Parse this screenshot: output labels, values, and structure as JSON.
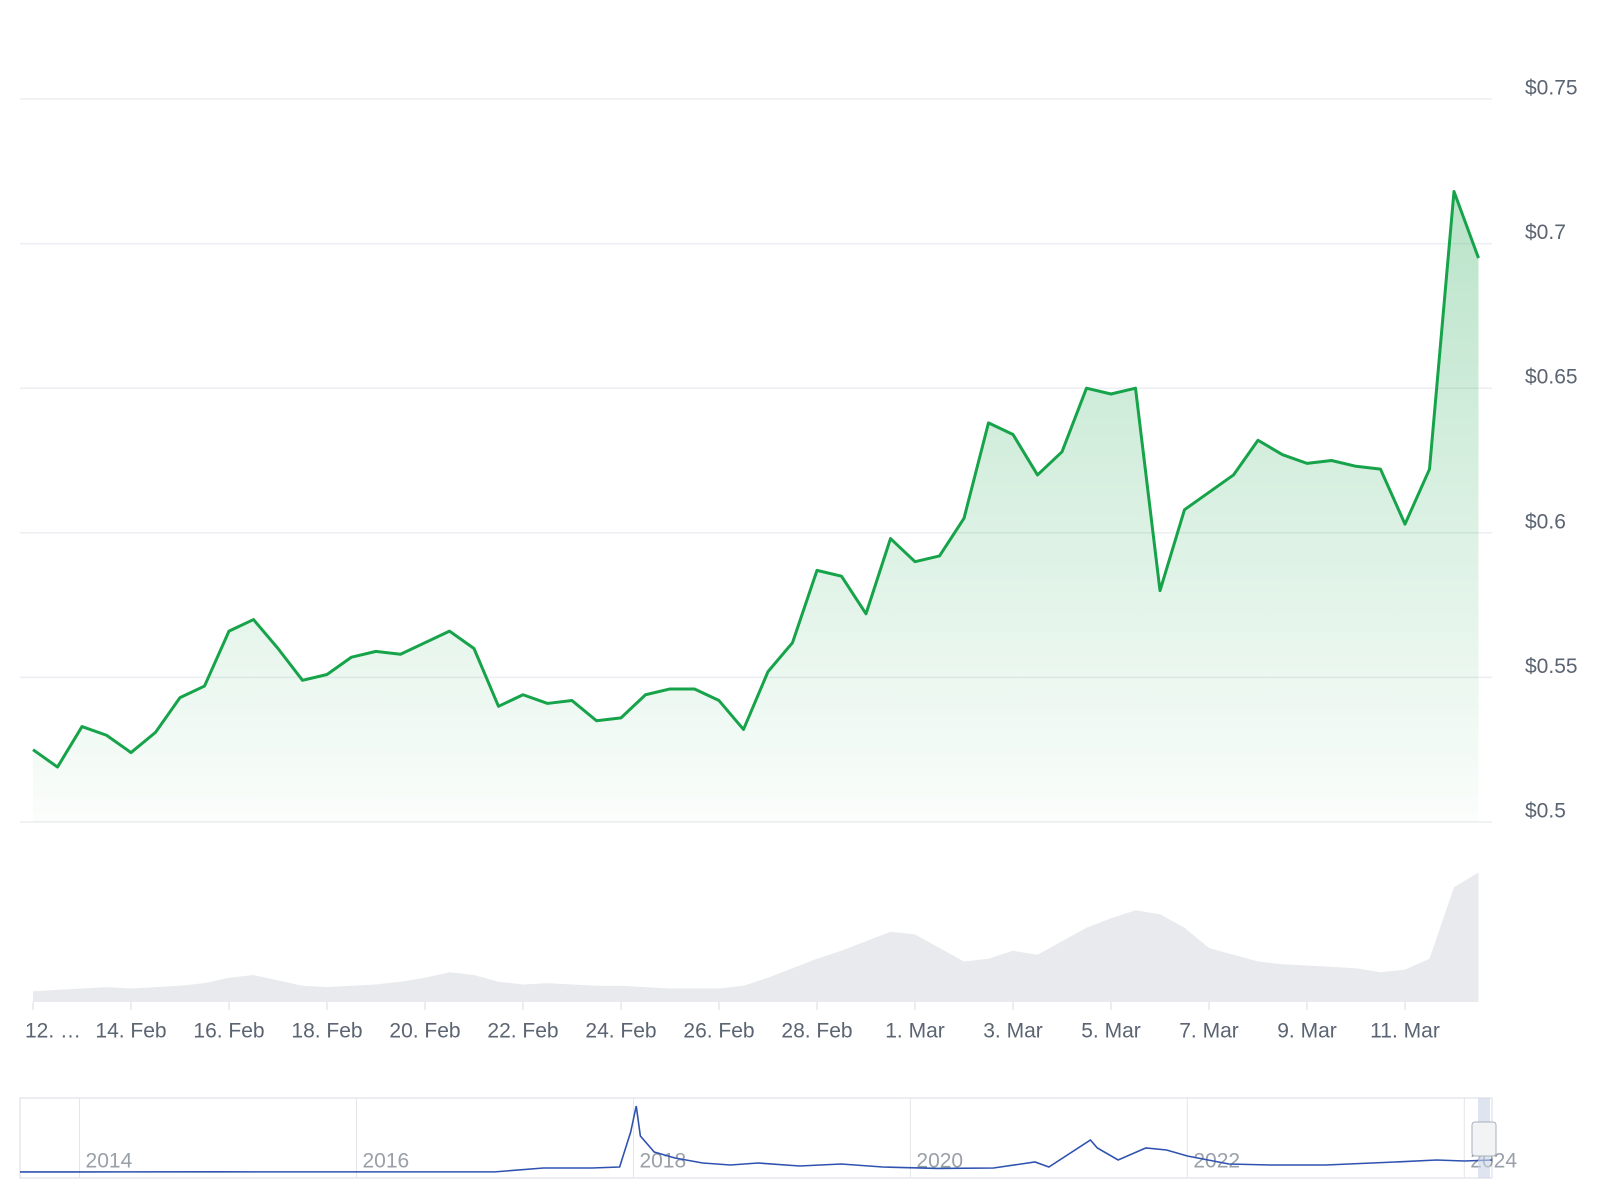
{
  "chart_data": {
    "type": "area",
    "color": "#16a34a",
    "categories": [
      "12. …",
      null,
      null,
      null,
      "14. Feb",
      null,
      null,
      null,
      "16. Feb",
      null,
      null,
      null,
      "18. Feb",
      null,
      null,
      null,
      "20. Feb",
      null,
      null,
      null,
      "22. Feb",
      null,
      null,
      null,
      "24. Feb",
      null,
      null,
      null,
      "26. Feb",
      null,
      null,
      null,
      "28. Feb",
      null,
      null,
      null,
      "1. Mar",
      null,
      null,
      null,
      "3. Mar",
      null,
      null,
      null,
      "5. Mar",
      null,
      null,
      null,
      "7. Mar",
      null,
      null,
      null,
      "9. Mar",
      null,
      null,
      null,
      "11. Mar",
      null,
      null,
      null
    ],
    "values": [
      0.525,
      0.519,
      0.533,
      0.53,
      0.524,
      0.531,
      0.543,
      0.547,
      0.566,
      0.57,
      0.56,
      0.549,
      0.551,
      0.557,
      0.559,
      0.558,
      0.562,
      0.566,
      0.56,
      0.54,
      0.544,
      0.541,
      0.542,
      0.535,
      0.536,
      0.544,
      0.546,
      0.546,
      0.542,
      0.532,
      0.552,
      0.562,
      0.587,
      0.585,
      0.572,
      0.598,
      0.59,
      0.592,
      0.605,
      0.638,
      0.634,
      0.62,
      0.628,
      0.65,
      0.648,
      0.65,
      0.58,
      0.608,
      0.614,
      0.62,
      0.632,
      0.627,
      0.624,
      0.625,
      0.623,
      0.622,
      0.603,
      0.622,
      0.718,
      0.695
    ],
    "ylim": [
      0.5,
      0.75
    ],
    "yticks": [
      {
        "value": 0.5,
        "label": "$0.5"
      },
      {
        "value": 0.55,
        "label": "$0.55"
      },
      {
        "value": 0.6,
        "label": "$0.6"
      },
      {
        "value": 0.65,
        "label": "$0.65"
      },
      {
        "value": 0.7,
        "label": "$0.7"
      },
      {
        "value": 0.75,
        "label": "$0.75"
      }
    ],
    "grid": true,
    "volume": {
      "color": "#e8eaee",
      "ylim": [
        0,
        100
      ],
      "values": [
        8,
        9,
        10,
        11,
        10,
        11,
        12,
        14,
        18,
        20,
        16,
        12,
        11,
        12,
        13,
        15,
        18,
        22,
        20,
        15,
        13,
        14,
        13,
        12,
        12,
        11,
        10,
        10,
        10,
        12,
        18,
        25,
        32,
        38,
        45,
        52,
        50,
        40,
        30,
        32,
        38,
        35,
        45,
        55,
        62,
        68,
        65,
        55,
        40,
        35,
        30,
        28,
        27,
        26,
        25,
        22,
        24,
        32,
        85,
        96
      ]
    },
    "navigator": {
      "type": "line",
      "color": "#2f52b0",
      "x": [
        2013.57,
        2014.0,
        2015.0,
        2016.0,
        2017.0,
        2017.35,
        2017.5,
        2017.7,
        2017.9,
        2017.98,
        2018.02,
        2018.05,
        2018.15,
        2018.3,
        2018.5,
        2018.7,
        2018.9,
        2019.2,
        2019.5,
        2019.8,
        2020.2,
        2020.6,
        2020.9,
        2021.0,
        2021.3,
        2021.35,
        2021.5,
        2021.7,
        2021.85,
        2022.0,
        2022.3,
        2022.6,
        2023.0,
        2023.5,
        2023.8,
        2024.0,
        2024.2
      ],
      "values": [
        0.005,
        0.005,
        0.007,
        0.006,
        0.006,
        0.2,
        0.2,
        0.2,
        0.25,
        2.0,
        3.3,
        1.8,
        1.0,
        0.7,
        0.45,
        0.35,
        0.45,
        0.3,
        0.4,
        0.25,
        0.18,
        0.2,
        0.5,
        0.25,
        1.6,
        1.2,
        0.6,
        1.2,
        1.1,
        0.8,
        0.4,
        0.35,
        0.35,
        0.5,
        0.6,
        0.55,
        0.6
      ],
      "xlim": [
        2013.57,
        2024.2
      ],
      "ylim": [
        0,
        3.4
      ],
      "xticks": [
        2014,
        2016,
        2018,
        2020,
        2022,
        2024
      ]
    }
  }
}
